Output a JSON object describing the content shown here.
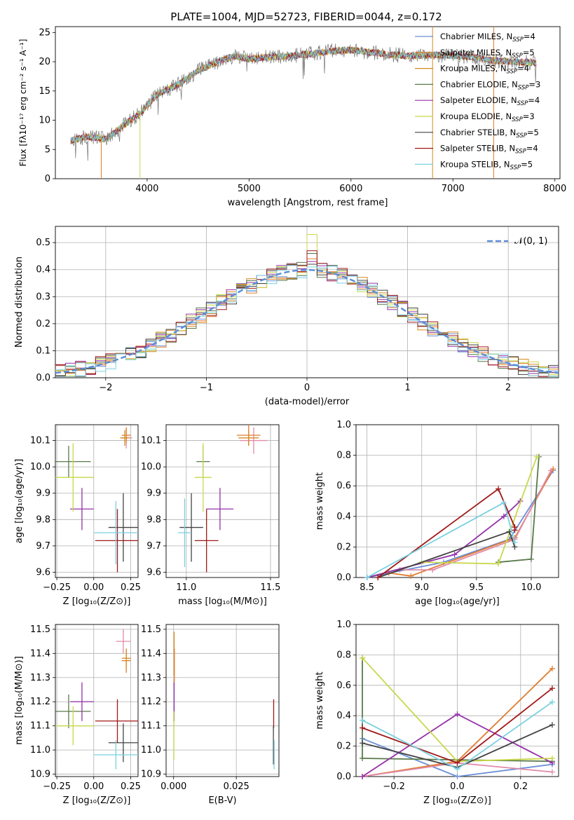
{
  "title": "PLATE=1004, MJD=52723, FIBERID=0044, z=0.172",
  "model_colors": [
    "#6a8fd8",
    "#e07b2c",
    "#d48a1e",
    "#5a7a4a",
    "#9530a8",
    "#c8d84a",
    "#444444",
    "#a01818",
    "#7ad0e0"
  ],
  "chart_data": [
    {
      "id": "spectrum",
      "type": "line",
      "xlabel": "wavelength [Angstrom, rest frame]",
      "ylabel": "Flux [fλ10⁻¹⁷ erg cm⁻² s⁻¹ A⁻¹]",
      "xlim": [
        3100,
        8050
      ],
      "ylim": [
        0,
        26
      ],
      "xticks": [
        4000,
        5000,
        6000,
        7000,
        8000
      ],
      "yticks": [
        0,
        5,
        10,
        15,
        20,
        25
      ],
      "grid": false,
      "legend_position": "right",
      "x": [
        3250,
        3400,
        3600,
        3800,
        3950,
        4100,
        4300,
        4500,
        4700,
        4860,
        5000,
        5200,
        5400,
        5600,
        5800,
        6000,
        6200,
        6400,
        6600,
        6800,
        7000,
        7200,
        7400,
        7600,
        7800
      ],
      "data": [
        6.5,
        7.2,
        6.8,
        9.5,
        11.5,
        14.5,
        16.0,
        18.5,
        20.0,
        21.0,
        20.5,
        20.8,
        21.0,
        21.3,
        21.8,
        22.0,
        21.6,
        21.2,
        21.0,
        21.2,
        21.0,
        20.8,
        20.2,
        20.0,
        19.8
      ],
      "series": [
        {
          "name": "Chabrier MILES, N_SSP=4",
          "label_main": "Chabrier MILES, N",
          "label_sub": "SSP",
          "label_tail": "=4"
        },
        {
          "name": "Salpeter MILES, N_SSP=5",
          "label_main": "Salpeter MILES, N",
          "label_sub": "SSP",
          "label_tail": "=5"
        },
        {
          "name": "Kroupa MILES, N_SSP=4",
          "label_main": "Kroupa MILES, N",
          "label_sub": "SSP",
          "label_tail": "=4"
        },
        {
          "name": "Chabrier ELODIE, N_SSP=3",
          "label_main": "Chabrier ELODIE, N",
          "label_sub": "SSP",
          "label_tail": "=3"
        },
        {
          "name": "Salpeter ELODIE, N_SSP=4",
          "label_main": "Salpeter ELODIE, N",
          "label_sub": "SSP",
          "label_tail": "=4"
        },
        {
          "name": "Kroupa ELODIE, N_SSP=3",
          "label_main": "Kroupa ELODIE, N",
          "label_sub": "SSP",
          "label_tail": "=3"
        },
        {
          "name": "Chabrier STELIB, N_SSP=5",
          "label_main": "Chabrier STELIB, N",
          "label_sub": "SSP",
          "label_tail": "=5"
        },
        {
          "name": "Salpeter STELIB, N_SSP=4",
          "label_main": "Salpeter STELIB, N",
          "label_sub": "SSP",
          "label_tail": "=4"
        },
        {
          "name": "Kroupa STELIB, N_SSP=5",
          "label_main": "Kroupa STELIB, N",
          "label_sub": "SSP",
          "label_tail": "=5"
        }
      ]
    },
    {
      "id": "residuals",
      "type": "step",
      "xlabel": "(data-model)/error",
      "ylabel": "Normed distribution",
      "xlim": [
        -2.5,
        2.5
      ],
      "ylim": [
        0,
        0.56
      ],
      "xticks": [
        -2,
        -1,
        0,
        1,
        2
      ],
      "yticks": [
        0.0,
        0.1,
        0.2,
        0.3,
        0.4,
        0.5
      ],
      "grid": true,
      "legend_position": "top-right",
      "reference_curve": "N(0,1)",
      "reference_label": "𝒩(0, 1)",
      "bin_width": 0.1,
      "bins_start": -2.5,
      "peak_values": [
        0.46,
        0.44,
        0.42,
        0.46,
        0.43,
        0.53,
        0.42,
        0.47,
        0.41
      ]
    },
    {
      "id": "age_vs_Z",
      "type": "errorbar",
      "xlabel": "Z [log₁₀(Z/Z⊙)]",
      "ylabel": "age  [log₁₀(age/yr)]",
      "xlim": [
        -0.26,
        0.3
      ],
      "ylim": [
        9.58,
        10.16
      ],
      "xticks": [
        -0.25,
        0.0,
        0.25
      ],
      "yticks": [
        9.6,
        9.7,
        9.8,
        9.9,
        10.0,
        10.1
      ],
      "grid": true,
      "points": [
        {
          "x": 0.22,
          "y": 10.11,
          "xerr": 0.04,
          "yerr": 0.04
        },
        {
          "x": 0.22,
          "y": 10.12,
          "xerr": 0.03,
          "yerr": 0.03
        },
        {
          "x": 0.21,
          "y": 10.11,
          "xerr": 0.03,
          "yerr": 0.03
        },
        {
          "x": -0.17,
          "y": 10.02,
          "xerr": 0.15,
          "yerr": 0.06
        },
        {
          "x": -0.08,
          "y": 9.84,
          "xerr": 0.08,
          "yerr": 0.08
        },
        {
          "x": -0.14,
          "y": 9.96,
          "xerr": 0.14,
          "yerr": 0.13
        },
        {
          "x": 0.2,
          "y": 9.77,
          "xerr": 0.1,
          "yerr": 0.13
        },
        {
          "x": 0.16,
          "y": 9.72,
          "xerr": 0.15,
          "yerr": 0.12
        },
        {
          "x": 0.15,
          "y": 9.75,
          "xerr": 0.15,
          "yerr": 0.12
        }
      ]
    },
    {
      "id": "age_vs_mass",
      "type": "errorbar",
      "xlabel": "mass [log₁₀(M/M⊙)]",
      "ylabel": "",
      "xlim": [
        10.88,
        11.55
      ],
      "ylim": [
        9.58,
        10.16
      ],
      "xticks": [
        11.0,
        11.5
      ],
      "yticks": [
        9.6,
        9.7,
        9.8,
        9.9,
        10.0,
        10.1
      ],
      "grid": true,
      "points": [
        {
          "x": 11.4,
          "y": 10.1,
          "xerr": 0.08,
          "yerr": 0.05
        },
        {
          "x": 11.37,
          "y": 10.12,
          "xerr": 0.07,
          "yerr": 0.04
        },
        {
          "x": 11.37,
          "y": 10.11,
          "xerr": 0.06,
          "yerr": 0.03
        },
        {
          "x": 11.1,
          "y": 10.02,
          "xerr": 0.04,
          "yerr": 0.06
        },
        {
          "x": 11.2,
          "y": 9.84,
          "xerr": 0.08,
          "yerr": 0.08
        },
        {
          "x": 11.1,
          "y": 9.96,
          "xerr": 0.05,
          "yerr": 0.13
        },
        {
          "x": 11.03,
          "y": 9.77,
          "xerr": 0.07,
          "yerr": 0.13
        },
        {
          "x": 11.12,
          "y": 9.72,
          "xerr": 0.07,
          "yerr": 0.12
        },
        {
          "x": 10.99,
          "y": 9.75,
          "xerr": 0.04,
          "yerr": 0.13
        }
      ]
    },
    {
      "id": "weight_vs_age",
      "type": "line-marker",
      "xlabel": "age  [log₁₀(age/yr)]",
      "ylabel": "mass weight",
      "xlim": [
        8.4,
        10.25
      ],
      "ylim": [
        0,
        1.0
      ],
      "xticks": [
        8.5,
        9.0,
        9.5,
        10.0
      ],
      "yticks": [
        0.0,
        0.2,
        0.4,
        0.6,
        0.8,
        1.0
      ],
      "grid": true,
      "series": [
        {
          "x": [
            8.5,
            9.2,
            9.8,
            10.2
          ],
          "y": [
            0.0,
            0.1,
            0.25,
            0.7
          ]
        },
        {
          "x": [
            8.7,
            8.9,
            9.85,
            10.2
          ],
          "y": [
            0.03,
            0.01,
            0.26,
            0.71
          ]
        },
        {
          "x": [
            8.8,
            9.1,
            9.85,
            10.18
          ],
          "y": [
            0.05,
            0.05,
            0.25,
            0.7
          ]
        },
        {
          "x": [
            9.7,
            10.0,
            10.07
          ],
          "y": [
            0.1,
            0.12,
            0.79
          ]
        },
        {
          "x": [
            8.5,
            9.3,
            9.75,
            9.9
          ],
          "y": [
            0.0,
            0.15,
            0.4,
            0.5
          ]
        },
        {
          "x": [
            9.0,
            9.7,
            10.05
          ],
          "y": [
            0.1,
            0.09,
            0.79
          ]
        },
        {
          "x": [
            8.6,
            9.8,
            9.85
          ],
          "y": [
            0.0,
            0.3,
            0.2
          ]
        },
        {
          "x": [
            8.6,
            9.7,
            9.85,
            9.85
          ],
          "y": [
            0.0,
            0.58,
            0.33,
            0.31
          ]
        },
        {
          "x": [
            8.5,
            9.75,
            9.85
          ],
          "y": [
            0.0,
            0.49,
            0.23
          ]
        }
      ]
    },
    {
      "id": "mass_vs_Z",
      "type": "errorbar",
      "xlabel": "Z [log₁₀(Z/Z⊙)]",
      "ylabel": "mass [log₁₀(M/M⊙)]",
      "xlim": [
        -0.26,
        0.3
      ],
      "ylim": [
        10.89,
        11.52
      ],
      "xticks": [
        -0.25,
        0.0,
        0.25
      ],
      "yticks": [
        10.9,
        11.0,
        11.1,
        11.2,
        11.3,
        11.4,
        11.5
      ],
      "grid": true,
      "points": [
        {
          "x": 0.2,
          "y": 11.45,
          "xerr": 0.05,
          "yerr": 0.05
        },
        {
          "x": 0.22,
          "y": 11.37,
          "xerr": 0.03,
          "yerr": 0.05
        },
        {
          "x": 0.22,
          "y": 11.38,
          "xerr": 0.03,
          "yerr": 0.04
        },
        {
          "x": -0.17,
          "y": 11.16,
          "xerr": 0.15,
          "yerr": 0.07
        },
        {
          "x": -0.08,
          "y": 11.2,
          "xerr": 0.08,
          "yerr": 0.08
        },
        {
          "x": -0.14,
          "y": 11.1,
          "xerr": 0.14,
          "yerr": 0.08
        },
        {
          "x": 0.2,
          "y": 11.03,
          "xerr": 0.1,
          "yerr": 0.08
        },
        {
          "x": 0.16,
          "y": 11.12,
          "xerr": 0.15,
          "yerr": 0.09
        },
        {
          "x": 0.15,
          "y": 10.98,
          "xerr": 0.15,
          "yerr": 0.06
        }
      ]
    },
    {
      "id": "mass_vs_EBV",
      "type": "errorbar",
      "xlabel": "E(B-V)",
      "ylabel": "",
      "xlim": [
        -0.003,
        0.042
      ],
      "ylim": [
        10.89,
        11.52
      ],
      "xticks": [
        0.0,
        0.025
      ],
      "xtick_labels": [
        "0.000",
        "0.025"
      ],
      "yticks": [
        10.9,
        11.0,
        11.1,
        11.2,
        11.3,
        11.4,
        11.5
      ],
      "grid": true,
      "points": [
        {
          "x": 0.0002,
          "y": 11.4,
          "xerr": 0.0,
          "yerr": 0.09
        },
        {
          "x": 0.0003,
          "y": 11.35,
          "xerr": 0.0,
          "yerr": 0.07
        },
        {
          "x": 0.0002,
          "y": 11.2,
          "xerr": 0.0,
          "yerr": 0.08
        },
        {
          "x": 0.0001,
          "y": 11.06,
          "xerr": 0.0,
          "yerr": 0.1
        },
        {
          "x": 0.0399,
          "y": 11.15,
          "xerr": 0.0,
          "yerr": 0.06
        },
        {
          "x": 0.0398,
          "y": 11.02,
          "xerr": 0.0,
          "yerr": 0.08
        },
        {
          "x": 0.0401,
          "y": 10.98,
          "xerr": 0.0,
          "yerr": 0.06
        }
      ]
    },
    {
      "id": "weight_vs_Z",
      "type": "line-marker",
      "xlabel": "Z [log₁₀(Z/Z⊙)]",
      "ylabel": "mass weight",
      "xlim": [
        -0.32,
        0.32
      ],
      "ylim": [
        0,
        1.0
      ],
      "xticks": [
        -0.2,
        0.0,
        0.2
      ],
      "yticks": [
        0.0,
        0.2,
        0.4,
        0.6,
        0.8,
        1.0
      ],
      "grid": true,
      "series": [
        {
          "x": [
            -0.3,
            0.0,
            0.3
          ],
          "y": [
            0.25,
            0.0,
            0.08
          ]
        },
        {
          "x": [
            -0.3,
            0.0,
            0.3
          ],
          "y": [
            0.0,
            0.1,
            0.71
          ]
        },
        {
          "x": [
            -0.3,
            0.0,
            0.3
          ],
          "y": [
            0.0,
            0.09,
            0.03
          ]
        },
        {
          "x": [
            -0.3,
            -0.3,
            0.3
          ],
          "y": [
            0.78,
            0.12,
            0.1
          ]
        },
        {
          "x": [
            -0.3,
            0.0,
            0.3
          ],
          "y": [
            0.0,
            0.41,
            0.09
          ]
        },
        {
          "x": [
            -0.3,
            0.0,
            0.3
          ],
          "y": [
            0.78,
            0.1,
            0.12
          ]
        },
        {
          "x": [
            -0.3,
            0.0,
            0.3
          ],
          "y": [
            0.22,
            0.06,
            0.34
          ]
        },
        {
          "x": [
            -0.3,
            0.0,
            0.3
          ],
          "y": [
            0.32,
            0.09,
            0.58
          ]
        },
        {
          "x": [
            -0.3,
            0.0,
            0.3
          ],
          "y": [
            0.37,
            0.05,
            0.49
          ]
        }
      ]
    }
  ]
}
